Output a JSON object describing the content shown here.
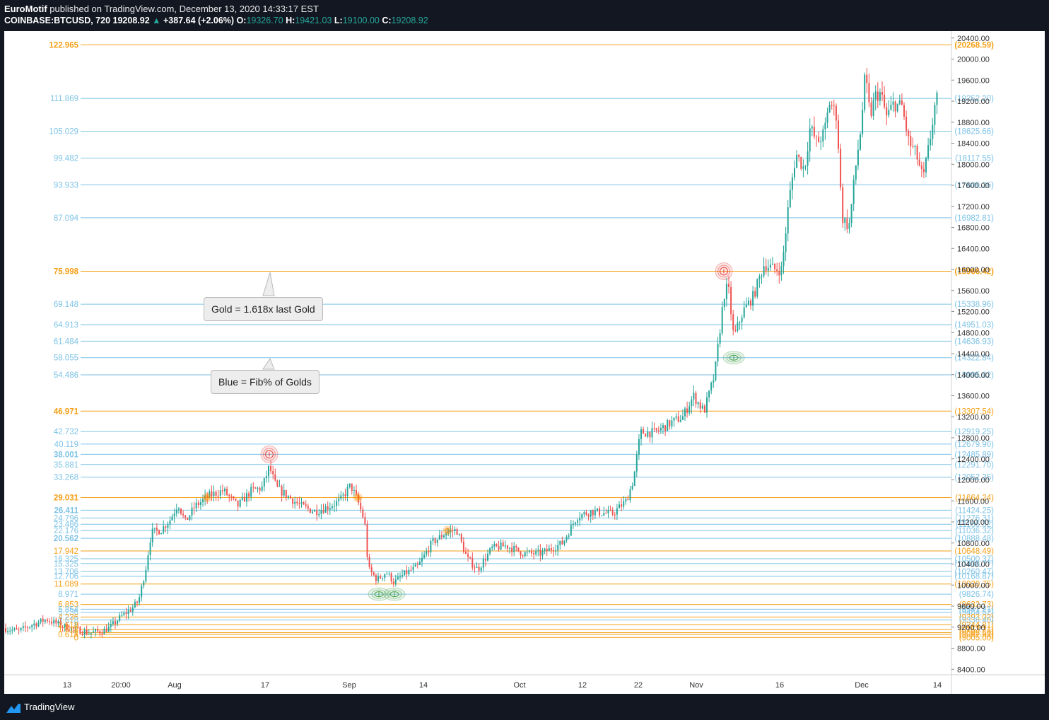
{
  "header": {
    "author": "EuroMotif",
    "published_text": "published on TradingView.com, December 13, 2020 14:33:17 EST",
    "symbol": "COINBASE:BTCUSD, 720",
    "last": "19208.92",
    "change": "+387.64 (+2.06%)",
    "o_label": "O:",
    "o_value": "19326.70",
    "h_label": "H:",
    "h_value": "19421.03",
    "l_label": "L:",
    "l_value": "19100.00",
    "c_label": "C:",
    "c_value": "19208.92"
  },
  "footer": {
    "brand": "TradingView"
  },
  "annotations": {
    "gold_note": "Gold = 1.618x last Gold",
    "blue_note": "Blue = Fib% of Golds"
  },
  "colors": {
    "gold": "#f59f15",
    "blue": "#7ec3e6",
    "up": "#26a69a",
    "down": "#ef5350"
  },
  "chart_data": {
    "type": "candlestick",
    "symbol": "COINBASE:BTCUSD",
    "interval": "720",
    "y_axis": {
      "ticks": [
        20400,
        20000,
        19600,
        19200,
        18800,
        18400,
        18000,
        17600,
        17200,
        16800,
        16400,
        16000,
        15600,
        15200,
        14800,
        14400,
        14000,
        13600,
        13200,
        12800,
        12400,
        12000,
        11600,
        11200,
        10800,
        10400,
        10000,
        9600,
        9200,
        8800,
        8400
      ],
      "tick_labels": [
        "20400.00",
        "20000.00",
        "19600.00",
        "19200.00",
        "18800.00",
        "18400.00",
        "18000.00",
        "17600.00",
        "17200.00",
        "16800.00",
        "16400.00",
        "16000.00",
        "15600.00",
        "15200.00",
        "14800.00",
        "14400.00",
        "14000.00",
        "13600.00",
        "13200.00",
        "12800.00",
        "12400.00",
        "12000.00",
        "11600.00",
        "11200.00",
        "10800.00",
        "10400.00",
        "10000.00",
        "9600.00",
        "9200.00",
        "8800.00",
        "8400.00"
      ],
      "range": [
        8200,
        20610
      ]
    },
    "x_axis": {
      "tick_labels": [
        "13",
        "20:00",
        "Aug",
        "17",
        "Sep",
        "14",
        "Oct",
        "12",
        "22",
        "Nov",
        "16",
        "Dec",
        "14"
      ]
    },
    "fib_levels": [
      {
        "left": "122.965",
        "right": "(20268.59)",
        "price": 20268.59,
        "color": "gold"
      },
      {
        "left": "111.869",
        "right": "(19252.20)",
        "price": 19252.2,
        "color": "blue"
      },
      {
        "left": "105.029",
        "right": "(18625.66)",
        "price": 18625.66,
        "color": "blue"
      },
      {
        "left": "99.482",
        "right": "(18117.55)",
        "price": 18117.55,
        "color": "blue"
      },
      {
        "left": "93.933",
        "right": "(17609.26)",
        "price": 17609.26,
        "color": "blue"
      },
      {
        "left": "87.094",
        "right": "(16982.81)",
        "price": 16982.81,
        "color": "blue"
      },
      {
        "left": "75.998",
        "right": "(15966.42)",
        "price": 15966.42,
        "color": "gold"
      },
      {
        "left": "69.148",
        "right": "(15338.96)",
        "price": 15338.96,
        "color": "blue"
      },
      {
        "left": "64.913",
        "right": "(14951.03)",
        "price": 14951.03,
        "color": "blue"
      },
      {
        "left": "61.484",
        "right": "(14636.93)",
        "price": 14636.93,
        "color": "blue"
      },
      {
        "left": "58.055",
        "right": "(14322.84)",
        "price": 14322.84,
        "color": "blue"
      },
      {
        "left": "54.486",
        "right": "(13995.92)",
        "price": 13995.92,
        "color": "blue"
      },
      {
        "left": "46.971",
        "right": "(13307.54)",
        "price": 13307.54,
        "color": "gold"
      },
      {
        "left": "42.732",
        "right": "(12919.25)",
        "price": 12919.25,
        "color": "blue"
      },
      {
        "left": "40.119",
        "right": "(12679.90)",
        "price": 12679.9,
        "color": "blue"
      },
      {
        "left": "38.001",
        "right": "(12485.89)",
        "price": 12485.89,
        "color": "blue"
      },
      {
        "left": "35.881",
        "right": "(12291.70)",
        "price": 12291.7,
        "color": "blue"
      },
      {
        "left": "33.268",
        "right": "(12052.35)",
        "price": 12052.35,
        "color": "blue"
      },
      {
        "left": "29.031",
        "right": "(11664.24)",
        "price": 11664.24,
        "color": "gold"
      },
      {
        "left": "26.411",
        "right": "(11424.25)",
        "price": 11424.25,
        "color": "blue"
      },
      {
        "left": "24.796",
        "right": "(11276.31)",
        "price": 11276.31,
        "color": "blue"
      },
      {
        "left": "23.486",
        "right": "(11156.32)",
        "price": 11156.32,
        "color": "blue"
      },
      {
        "left": "22.176",
        "right": "(11036.32)",
        "price": 11036.32,
        "color": "blue"
      },
      {
        "left": "20.562",
        "right": "(10888.48)",
        "price": 10888.48,
        "color": "blue"
      },
      {
        "left": "17.942",
        "right": "(10648.49)",
        "price": 10648.49,
        "color": "gold"
      },
      {
        "left": "16.325",
        "right": "(10500.37)",
        "price": 10500.37,
        "color": "blue"
      },
      {
        "left": "15.325",
        "right": "(10408.77)",
        "price": 10408.77,
        "color": "blue"
      },
      {
        "left": "13.706",
        "right": "(10260.47)",
        "price": 10260.47,
        "color": "blue"
      },
      {
        "left": "12.706",
        "right": "(10168.87)",
        "price": 10168.87,
        "color": "blue"
      },
      {
        "left": "11.089",
        "right": "(10020.75)",
        "price": 10020.75,
        "color": "gold"
      },
      {
        "left": "8.971",
        "right": "(9826.74)",
        "price": 9826.74,
        "color": "blue"
      },
      {
        "left": "6.853",
        "right": "(9632.73)",
        "price": 9632.73,
        "color": "gold"
      },
      {
        "left": "5.854",
        "right": "(9541.21)",
        "price": 9541.21,
        "color": "blue"
      },
      {
        "left": "5.236",
        "right": "(9484.62)",
        "price": 9484.62,
        "color": "blue"
      },
      {
        "left": "4.236",
        "right": "(9393.02)",
        "price": 9393.02,
        "color": "gold"
      },
      {
        "left": "3.618",
        "right": "(9336.40)",
        "price": 9336.4,
        "color": "blue"
      },
      {
        "left": "2.618",
        "right": "(9244.81)",
        "price": 9244.81,
        "color": "gold"
      },
      {
        "left": "1.618",
        "right": "(9153.21)",
        "price": 9153.21,
        "color": "gold"
      },
      {
        "left": "1",
        "right": "(9096.60)",
        "price": 9096.6,
        "color": "gold"
      },
      {
        "left": "0.618",
        "right": "(9061.61)",
        "price": 9061.61,
        "color": "gold"
      },
      {
        "left": "0",
        "right": "(9005.00)",
        "price": 9005.0,
        "color": "gold"
      }
    ],
    "price_path": [
      {
        "x": 0,
        "p": 9180
      },
      {
        "x": 20,
        "p": 9120
      },
      {
        "x": 40,
        "p": 9250
      },
      {
        "x": 60,
        "p": 9350
      },
      {
        "x": 80,
        "p": 9230
      },
      {
        "x": 100,
        "p": 9160
      },
      {
        "x": 120,
        "p": 9090
      },
      {
        "x": 140,
        "p": 9130
      },
      {
        "x": 150,
        "p": 9200
      },
      {
        "x": 165,
        "p": 9400
      },
      {
        "x": 180,
        "p": 9550
      },
      {
        "x": 190,
        "p": 9700
      },
      {
        "x": 200,
        "p": 10300
      },
      {
        "x": 208,
        "p": 11000
      },
      {
        "x": 222,
        "p": 11050
      },
      {
        "x": 235,
        "p": 11250
      },
      {
        "x": 246,
        "p": 11550
      },
      {
        "x": 256,
        "p": 11200
      },
      {
        "x": 270,
        "p": 11500
      },
      {
        "x": 290,
        "p": 11700
      },
      {
        "x": 310,
        "p": 11800
      },
      {
        "x": 330,
        "p": 11500
      },
      {
        "x": 350,
        "p": 11800
      },
      {
        "x": 365,
        "p": 11850
      },
      {
        "x": 375,
        "p": 12250
      },
      {
        "x": 385,
        "p": 11850
      },
      {
        "x": 400,
        "p": 11700
      },
      {
        "x": 420,
        "p": 11500
      },
      {
        "x": 440,
        "p": 11400
      },
      {
        "x": 460,
        "p": 11500
      },
      {
        "x": 475,
        "p": 11600
      },
      {
        "x": 490,
        "p": 11900
      },
      {
        "x": 500,
        "p": 11600
      },
      {
        "x": 510,
        "p": 11200
      },
      {
        "x": 515,
        "p": 10300
      },
      {
        "x": 528,
        "p": 10100
      },
      {
        "x": 540,
        "p": 10250
      },
      {
        "x": 552,
        "p": 10050
      },
      {
        "x": 565,
        "p": 10200
      },
      {
        "x": 585,
        "p": 10350
      },
      {
        "x": 605,
        "p": 10800
      },
      {
        "x": 625,
        "p": 11000
      },
      {
        "x": 640,
        "p": 11050
      },
      {
        "x": 655,
        "p": 10500
      },
      {
        "x": 670,
        "p": 10300
      },
      {
        "x": 690,
        "p": 10700
      },
      {
        "x": 710,
        "p": 10750
      },
      {
        "x": 735,
        "p": 10600
      },
      {
        "x": 760,
        "p": 10600
      },
      {
        "x": 790,
        "p": 10800
      },
      {
        "x": 810,
        "p": 11300
      },
      {
        "x": 830,
        "p": 11400
      },
      {
        "x": 860,
        "p": 11350
      },
      {
        "x": 880,
        "p": 11600
      },
      {
        "x": 890,
        "p": 12000
      },
      {
        "x": 900,
        "p": 12900
      },
      {
        "x": 920,
        "p": 12900
      },
      {
        "x": 945,
        "p": 13100
      },
      {
        "x": 960,
        "p": 13200
      },
      {
        "x": 975,
        "p": 13600
      },
      {
        "x": 990,
        "p": 13300
      },
      {
        "x": 1005,
        "p": 14000
      },
      {
        "x": 1012,
        "p": 14800
      },
      {
        "x": 1018,
        "p": 15500
      },
      {
        "x": 1024,
        "p": 15700
      },
      {
        "x": 1032,
        "p": 14700
      },
      {
        "x": 1045,
        "p": 15200
      },
      {
        "x": 1060,
        "p": 15500
      },
      {
        "x": 1075,
        "p": 16100
      },
      {
        "x": 1090,
        "p": 16000
      },
      {
        "x": 1100,
        "p": 16000
      },
      {
        "x": 1110,
        "p": 17300
      },
      {
        "x": 1120,
        "p": 18200
      },
      {
        "x": 1132,
        "p": 17900
      },
      {
        "x": 1140,
        "p": 18700
      },
      {
        "x": 1150,
        "p": 18400
      },
      {
        "x": 1160,
        "p": 18600
      },
      {
        "x": 1168,
        "p": 19200
      },
      {
        "x": 1178,
        "p": 18900
      },
      {
        "x": 1185,
        "p": 17000
      },
      {
        "x": 1195,
        "p": 16800
      },
      {
        "x": 1205,
        "p": 18000
      },
      {
        "x": 1212,
        "p": 18700
      },
      {
        "x": 1218,
        "p": 19700
      },
      {
        "x": 1225,
        "p": 18900
      },
      {
        "x": 1232,
        "p": 19300
      },
      {
        "x": 1240,
        "p": 19350
      },
      {
        "x": 1248,
        "p": 18900
      },
      {
        "x": 1258,
        "p": 19150
      },
      {
        "x": 1270,
        "p": 19100
      },
      {
        "x": 1280,
        "p": 18400
      },
      {
        "x": 1290,
        "p": 18200
      },
      {
        "x": 1300,
        "p": 17700
      },
      {
        "x": 1310,
        "p": 18500
      },
      {
        "x": 1318,
        "p": 19250
      },
      {
        "x": 1322,
        "p": 19210
      }
    ],
    "markers": [
      {
        "x": 375,
        "p": 12485.89,
        "color": "red"
      },
      {
        "x": 1018,
        "p": 15966.42,
        "color": "red"
      },
      {
        "x": 1032,
        "p": 14322.84,
        "color": "green"
      },
      {
        "x": 530,
        "p": 9826.74,
        "color": "green"
      },
      {
        "x": 552,
        "p": 9826.74,
        "color": "green"
      },
      {
        "x": 287,
        "p": 11664.24,
        "color": "orange"
      },
      {
        "x": 500,
        "p": 11664.24,
        "color": "orange"
      },
      {
        "x": 627,
        "p": 11036.32,
        "color": "orange"
      }
    ]
  }
}
